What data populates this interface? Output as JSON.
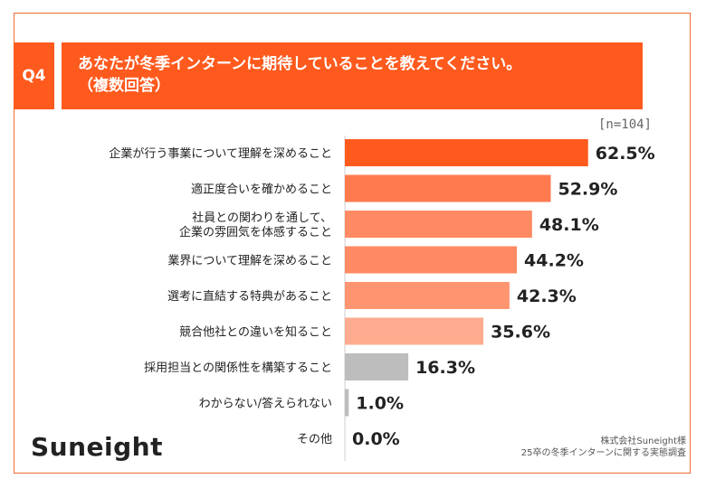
{
  "header": {
    "badge": "Q4",
    "question_line1": "あなたが冬季インターンに期待していることを教えてください。",
    "question_line2": "（複数回答）"
  },
  "n_label": "[n=104]",
  "chart_data": {
    "type": "bar",
    "orientation": "horizontal",
    "categories": [
      "企業が行う事業について理解を深めること",
      "適正度合いを確かめること",
      "社員との関わりを通して、\n企業の雰囲気を体感すること",
      "業界について理解を深めること",
      "選考に直結する特典があること",
      "競合他社との違いを知ること",
      "採用担当との関係性を構築すること",
      "わからない/答えられない",
      "その他"
    ],
    "values": [
      62.5,
      52.9,
      48.1,
      44.2,
      42.3,
      35.6,
      16.3,
      1.0,
      0.0
    ],
    "value_labels": [
      "62.5%",
      "52.9%",
      "48.1%",
      "44.2%",
      "42.3%",
      "35.6%",
      "16.3%",
      "1.0%",
      "0.0%"
    ],
    "colors": [
      "#ff5a1e",
      "#ff7a4f",
      "#ff8a63",
      "#ff8a63",
      "#ff9470",
      "#ffab8f",
      "#bdbdbd",
      "#bdbdbd",
      "#bdbdbd"
    ],
    "xlim": [
      0,
      100
    ],
    "grid": false
  },
  "footer": {
    "logo": "Suneight",
    "credit_line1": "株式会社Suneight様",
    "credit_line2": "25卒の冬季インターンに関する実態調査"
  }
}
